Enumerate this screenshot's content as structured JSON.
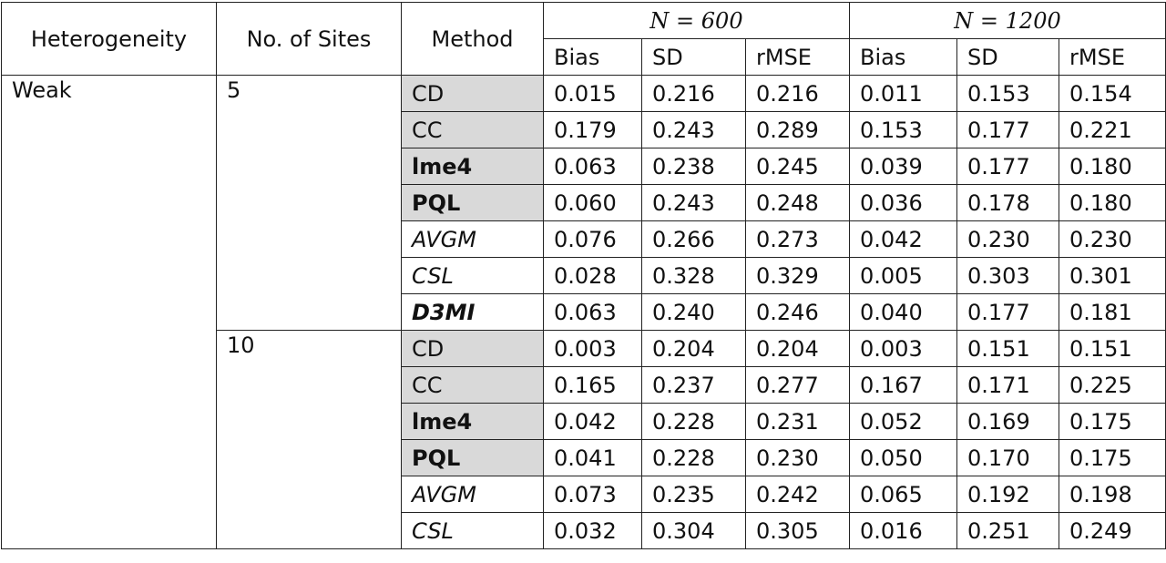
{
  "table": {
    "header": {
      "heterogeneity": "Heterogeneity",
      "sites": "No. of Sites",
      "method": "Method",
      "groups": [
        "N = 600",
        "N = 1200"
      ],
      "metrics": [
        "Bias",
        "SD",
        "rMSE",
        "Bias",
        "SD",
        "rMSE"
      ]
    },
    "groups": [
      {
        "heterogeneity": "Weak",
        "sites": [
          {
            "label": "5",
            "rows": [
              {
                "method": "CD",
                "values": [
                  "0.015",
                  "0.216",
                  "0.216",
                  "0.011",
                  "0.153",
                  "0.154"
                ]
              },
              {
                "method": "CC",
                "values": [
                  "0.179",
                  "0.243",
                  "0.289",
                  "0.153",
                  "0.177",
                  "0.221"
                ]
              },
              {
                "method": "lme4",
                "values": [
                  "0.063",
                  "0.238",
                  "0.245",
                  "0.039",
                  "0.177",
                  "0.180"
                ]
              },
              {
                "method": "PQL",
                "values": [
                  "0.060",
                  "0.243",
                  "0.248",
                  "0.036",
                  "0.178",
                  "0.180"
                ]
              },
              {
                "method": "AVGM",
                "values": [
                  "0.076",
                  "0.266",
                  "0.273",
                  "0.042",
                  "0.230",
                  "0.230"
                ]
              },
              {
                "method": "CSL",
                "values": [
                  "0.028",
                  "0.328",
                  "0.329",
                  "0.005",
                  "0.303",
                  "0.301"
                ]
              },
              {
                "method": "D3MI",
                "values": [
                  "0.063",
                  "0.240",
                  "0.246",
                  "0.040",
                  "0.177",
                  "0.181"
                ]
              }
            ]
          },
          {
            "label": "10",
            "rows": [
              {
                "method": "CD",
                "values": [
                  "0.003",
                  "0.204",
                  "0.204",
                  "0.003",
                  "0.151",
                  "0.151"
                ]
              },
              {
                "method": "CC",
                "values": [
                  "0.165",
                  "0.237",
                  "0.277",
                  "0.167",
                  "0.171",
                  "0.225"
                ]
              },
              {
                "method": "lme4",
                "values": [
                  "0.042",
                  "0.228",
                  "0.231",
                  "0.052",
                  "0.169",
                  "0.175"
                ]
              },
              {
                "method": "PQL",
                "values": [
                  "0.041",
                  "0.228",
                  "0.230",
                  "0.050",
                  "0.170",
                  "0.175"
                ]
              },
              {
                "method": "AVGM",
                "values": [
                  "0.073",
                  "0.235",
                  "0.242",
                  "0.065",
                  "0.192",
                  "0.198"
                ]
              },
              {
                "method": "CSL",
                "values": [
                  "0.032",
                  "0.304",
                  "0.305",
                  "0.016",
                  "0.251",
                  "0.249"
                ]
              }
            ]
          }
        ]
      }
    ]
  }
}
